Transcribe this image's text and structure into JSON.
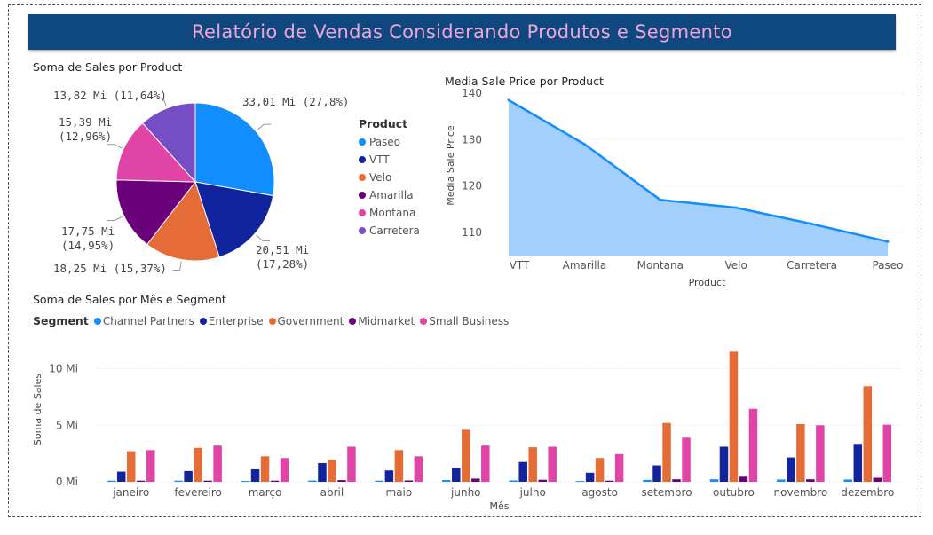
{
  "report_title": "Relatório de Vendas Considerando Produtos e Segmento",
  "pie": {
    "title": "Soma de Sales por Product",
    "legend_title": "Product",
    "chart_data": {
      "type": "pie",
      "slices": [
        {
          "name": "Paseo",
          "value_label": "33,01 Mi (27,8%)",
          "label_lines": [
            "33,01 Mi (27,8%)"
          ],
          "value": 33.01,
          "color": "#118dff"
        },
        {
          "name": "VTT",
          "value_label": "20,51 Mi (17,28%)",
          "label_lines": [
            "20,51 Mi",
            "(17,28%)"
          ],
          "value": 20.51,
          "color": "#12239e"
        },
        {
          "name": "Velo",
          "value_label": "18,25 Mi (15,37%)",
          "label_lines": [
            "18,25 Mi (15,37%)"
          ],
          "value": 18.25,
          "color": "#e66c37"
        },
        {
          "name": "Amarilla",
          "value_label": "17,75 Mi (14,95%)",
          "label_lines": [
            "17,75 Mi",
            "(14,95%)"
          ],
          "value": 17.75,
          "color": "#6b007b"
        },
        {
          "name": "Montana",
          "value_label": "15,39 Mi (12,96%)",
          "label_lines": [
            "15,39 Mi",
            "(12,96%)"
          ],
          "value": 15.39,
          "color": "#e044a7"
        },
        {
          "name": "Carretera",
          "value_label": "13,82 Mi (11,64%)",
          "label_lines": [
            "13,82 Mi (11,64%)"
          ],
          "value": 13.82,
          "color": "#744ec2"
        }
      ]
    }
  },
  "area": {
    "title": "Media Sale Price por Product",
    "chart_data": {
      "type": "area",
      "categories": [
        "VTT",
        "Amarilla",
        "Montana",
        "Velo",
        "Carretera",
        "Paseo"
      ],
      "values": [
        138.5,
        129,
        117,
        115.3,
        111.8,
        108
      ],
      "ylim": [
        105,
        140
      ],
      "yticks": [
        "140",
        "130",
        "120",
        "110"
      ],
      "ytick_values": [
        140,
        130,
        120,
        110
      ],
      "xlabel": "Product",
      "ylabel": "Media Sale Price",
      "line_color": "#118dff",
      "fill_color": "#a3cffd",
      "grid": true
    }
  },
  "bars": {
    "title": "Soma de Sales por Mês e Segment",
    "legend_title": "Segment",
    "chart_data": {
      "type": "bar",
      "categories": [
        "janeiro",
        "fevereiro",
        "março",
        "abril",
        "maio",
        "junho",
        "julho",
        "agosto",
        "setembro",
        "outubro",
        "novembro",
        "dezembro"
      ],
      "series": [
        {
          "name": "Channel Partners",
          "color": "#118dff",
          "values": [
            0.1,
            0.1,
            0.07,
            0.11,
            0.1,
            0.15,
            0.12,
            0.07,
            0.17,
            0.22,
            0.2,
            0.2
          ]
        },
        {
          "name": "Enterprise",
          "color": "#12239e",
          "values": [
            0.9,
            0.95,
            1.1,
            1.65,
            1.0,
            1.25,
            1.75,
            0.8,
            1.45,
            3.1,
            2.15,
            3.35
          ]
        },
        {
          "name": "Government",
          "color": "#e66c37",
          "values": [
            2.7,
            3.0,
            2.25,
            1.95,
            2.8,
            4.6,
            3.05,
            2.1,
            5.2,
            11.5,
            5.1,
            8.45
          ]
        },
        {
          "name": "Midmarket",
          "color": "#6b007b",
          "values": [
            0.1,
            0.1,
            0.1,
            0.15,
            0.12,
            0.28,
            0.18,
            0.1,
            0.22,
            0.45,
            0.22,
            0.35
          ]
        },
        {
          "name": "Small Business",
          "color": "#e044a7",
          "values": [
            2.8,
            3.2,
            2.1,
            3.1,
            2.25,
            3.2,
            3.1,
            2.45,
            3.9,
            6.45,
            5.0,
            5.05
          ]
        }
      ],
      "ylim": [
        0,
        12
      ],
      "yticks": [
        "10 Mi",
        "5 Mi",
        "0 Mi"
      ],
      "ytick_values": [
        10,
        5,
        0
      ],
      "xlabel": "Mês",
      "ylabel": "Soma de Sales",
      "grid": true
    }
  }
}
